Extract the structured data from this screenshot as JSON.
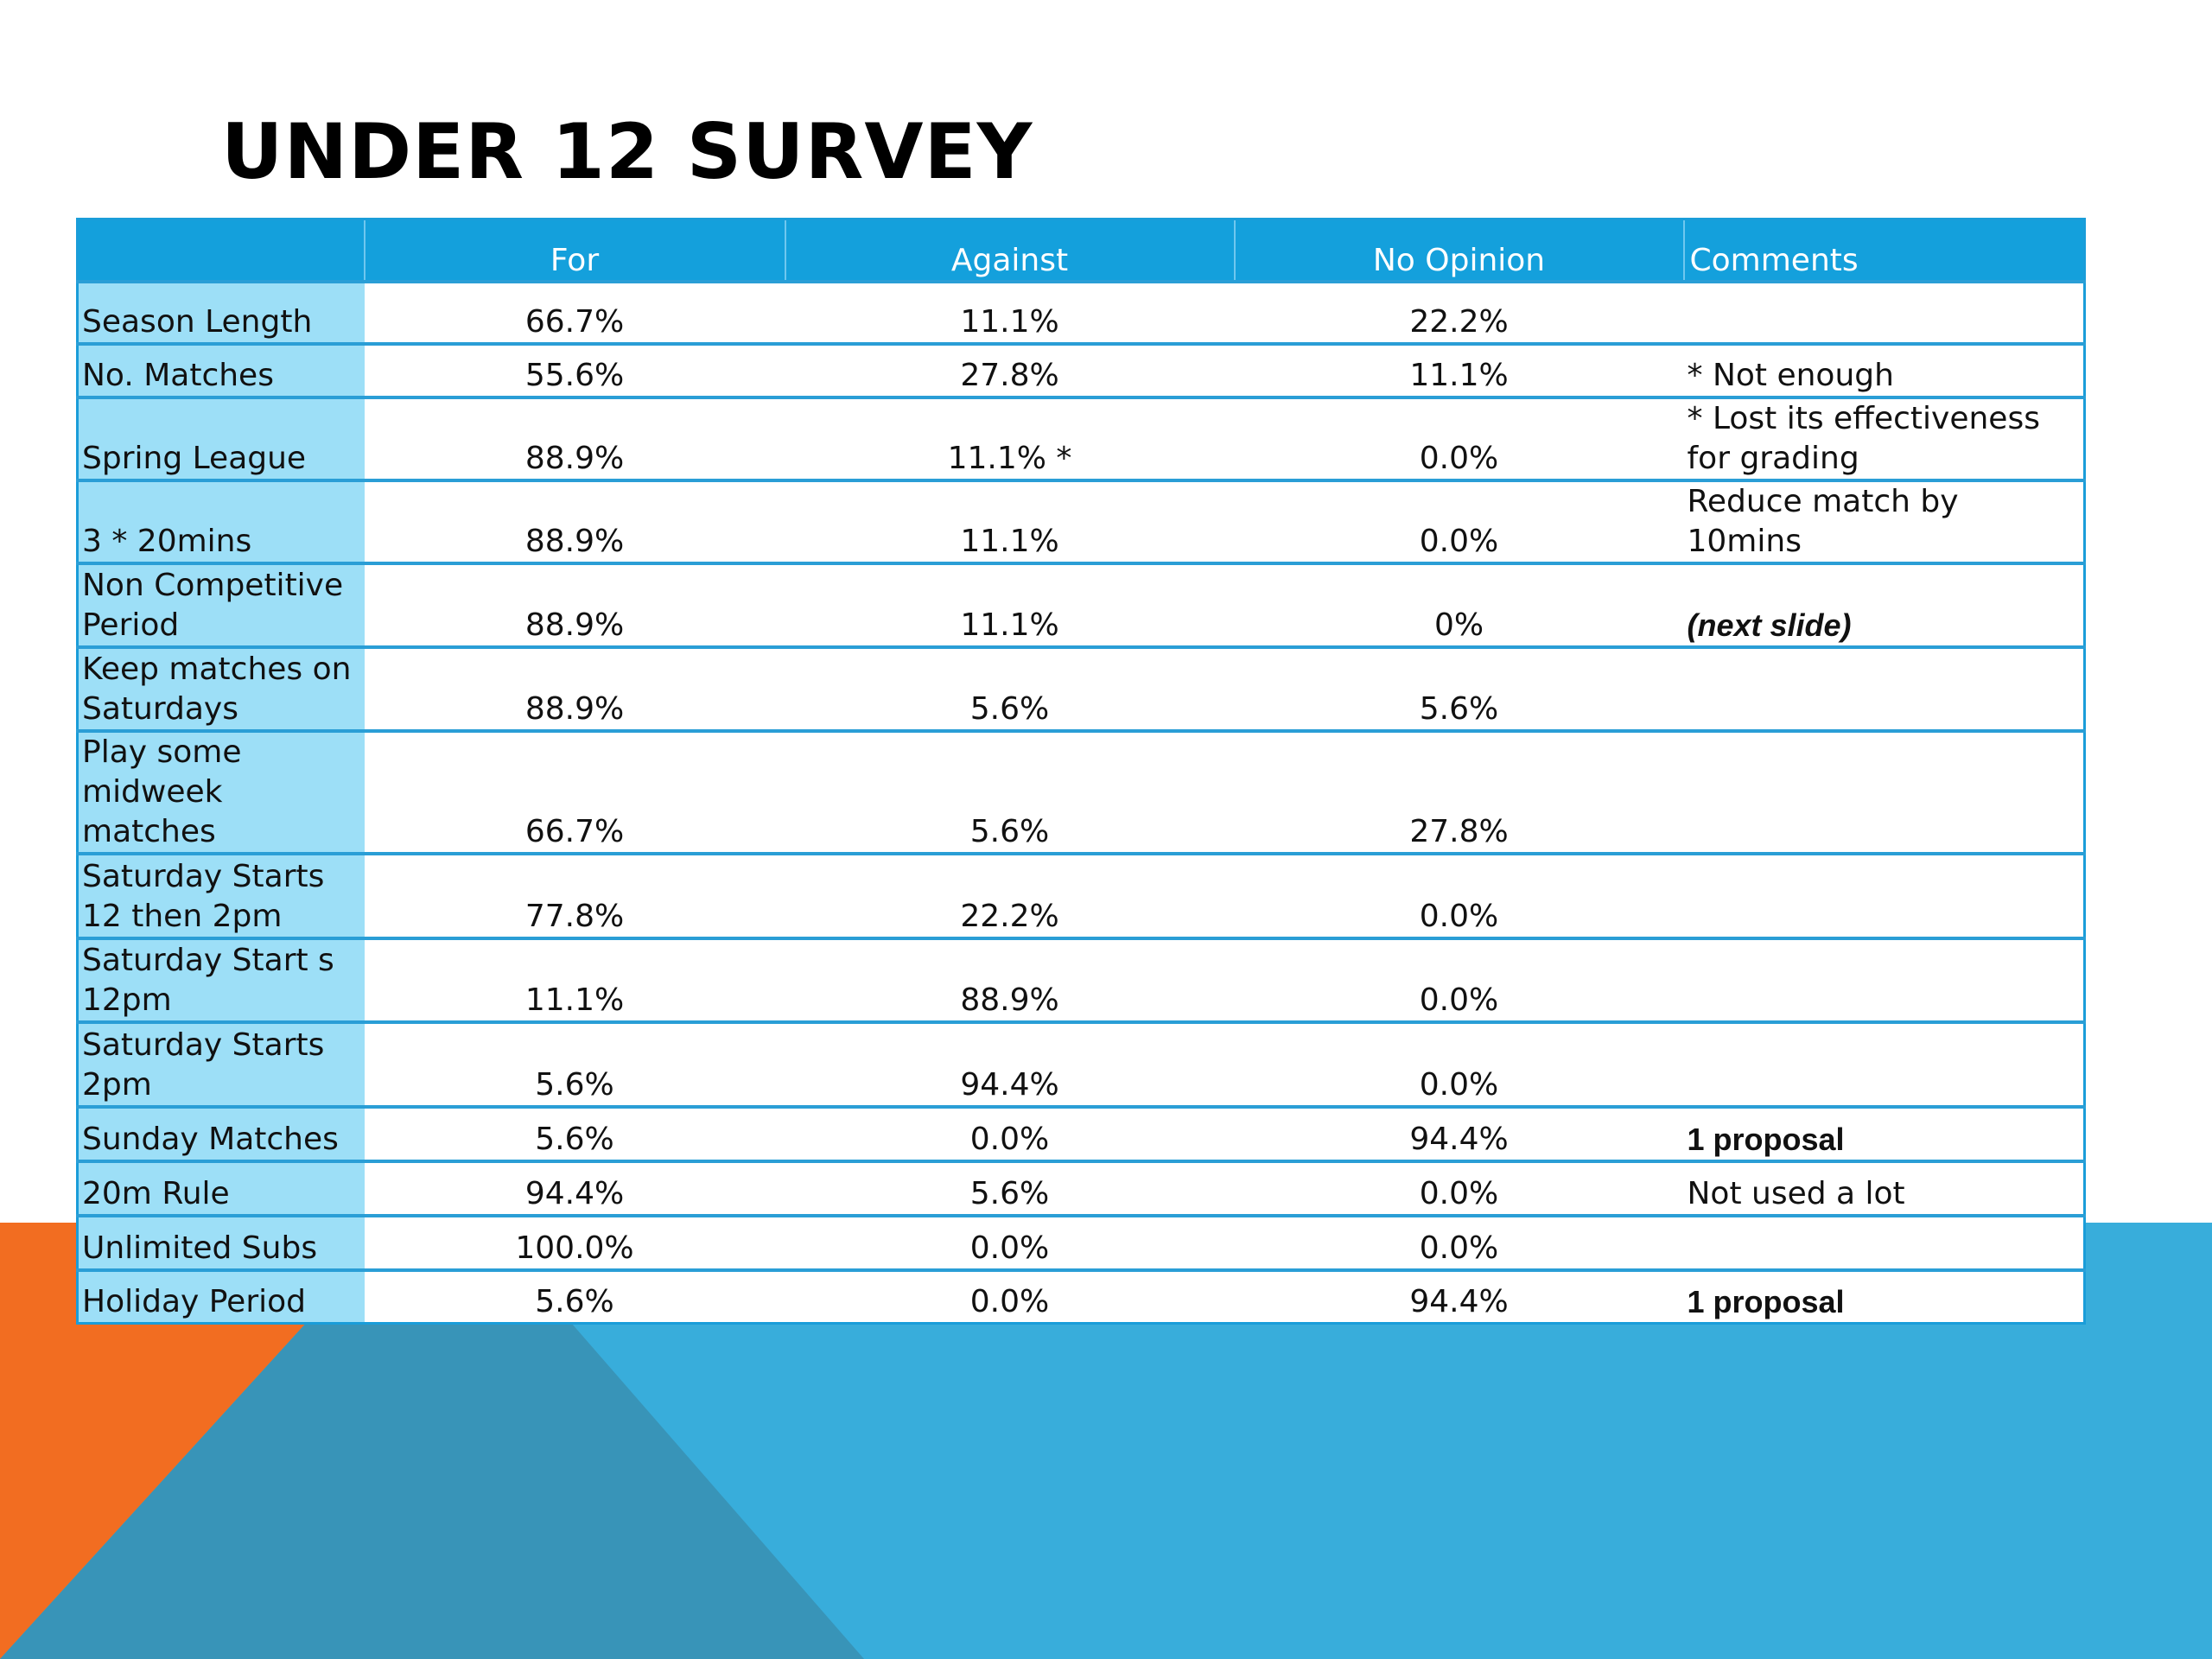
{
  "slide": {
    "title": "UNDER 12 SURVEY",
    "colors": {
      "header_blue": "#14a0dc",
      "label_cyan": "#9ddff7",
      "accent_orange": "#f26d21",
      "bg_blue": "#38addb",
      "bg_dark_blue": "#3894b8"
    }
  },
  "table": {
    "headers": [
      "",
      "For",
      "Against",
      "No Opinion",
      "Comments"
    ],
    "rows": [
      {
        "label": "Season Length",
        "for": "66.7%",
        "against": "11.1%",
        "no_opinion": "22.2%",
        "comments": ""
      },
      {
        "label": "No. Matches",
        "for": "55.6%",
        "against": "27.8%",
        "no_opinion": "11.1%",
        "comments": "* Not enough"
      },
      {
        "label": "Spring League",
        "for": "88.9%",
        "against": "11.1% *",
        "no_opinion": "0.0%",
        "comments": "* Lost its effectiveness for grading"
      },
      {
        "label": "3 * 20mins",
        "for": "88.9%",
        "against": "11.1%",
        "no_opinion": "0.0%",
        "comments": "Reduce match by 10mins"
      },
      {
        "label": "Non Competitive Period",
        "for": "88.9%",
        "against": "11.1%",
        "no_opinion": "0%",
        "comments": "(next slide)"
      },
      {
        "label": "Keep matches on Saturdays",
        "for": "88.9%",
        "against": "5.6%",
        "no_opinion": "5.6%",
        "comments": ""
      },
      {
        "label": "Play some midweek matches",
        "for": "66.7%",
        "against": "5.6%",
        "no_opinion": "27.8%",
        "comments": ""
      },
      {
        "label": "Saturday Starts 12 then 2pm",
        "for": "77.8%",
        "against": "22.2%",
        "no_opinion": "0.0%",
        "comments": ""
      },
      {
        "label": "Saturday Start s 12pm",
        "for": "11.1%",
        "against": "88.9%",
        "no_opinion": "0.0%",
        "comments": ""
      },
      {
        "label": "Saturday Starts 2pm",
        "for": "5.6%",
        "against": "94.4%",
        "no_opinion": "0.0%",
        "comments": ""
      },
      {
        "label": "Sunday Matches",
        "for": "5.6%",
        "against": "0.0%",
        "no_opinion": "94.4%",
        "comments": "1 proposal"
      },
      {
        "label": "20m Rule",
        "for": "94.4%",
        "against": "5.6%",
        "no_opinion": "0.0%",
        "comments": "Not used a lot"
      },
      {
        "label": "Unlimited Subs",
        "for": "100.0%",
        "against": "0.0%",
        "no_opinion": "0.0%",
        "comments": ""
      },
      {
        "label": "Holiday Period",
        "for": "5.6%",
        "against": "0.0%",
        "no_opinion": "94.4%",
        "comments": "1 proposal"
      }
    ]
  }
}
